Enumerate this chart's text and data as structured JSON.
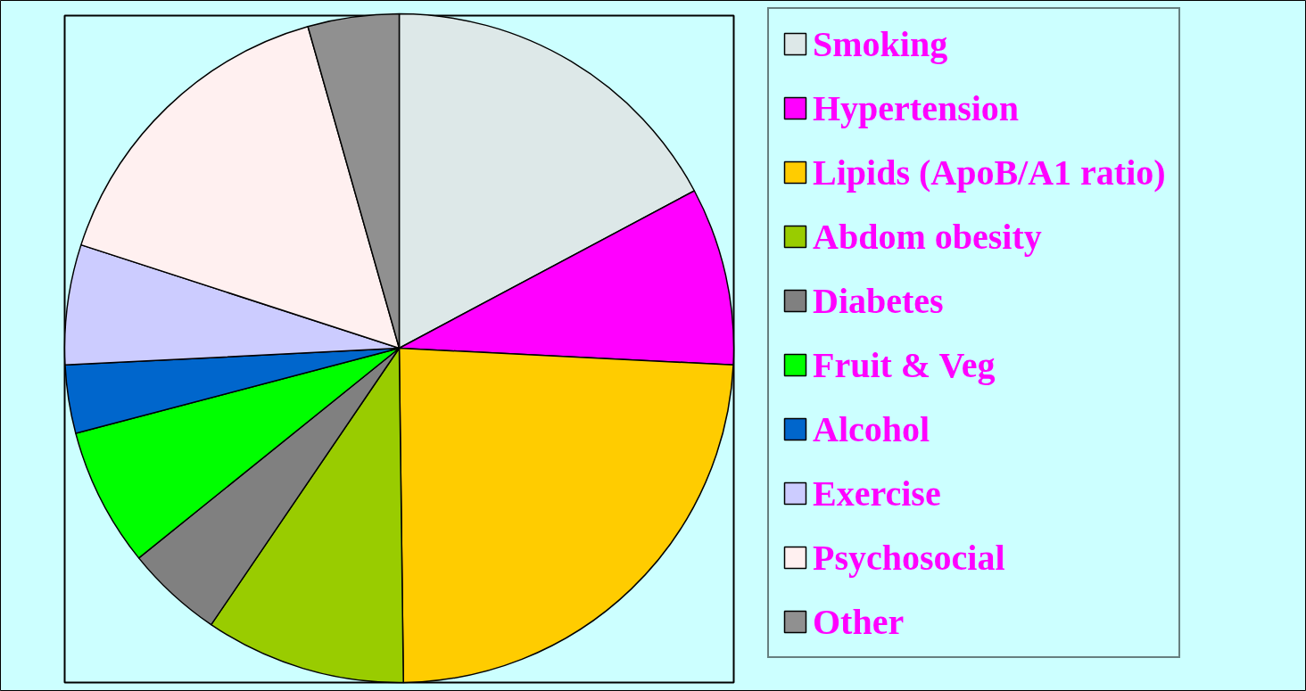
{
  "chart_data": {
    "type": "pie",
    "categories": [
      "Smoking",
      "Hypertension",
      "Lipids (ApoB/A1 ratio)",
      "Abdom obesity",
      "Diabetes",
      "Fruit & Veg",
      "Alcohol",
      "Exercise",
      "Psychosocial",
      "Other"
    ],
    "values": [
      17.2,
      8.6,
      24.0,
      9.7,
      4.7,
      6.7,
      3.3,
      5.8,
      15.6,
      4.4
    ],
    "colors": [
      "#dde8e8",
      "#ff00ff",
      "#ffcc00",
      "#99cc00",
      "#808080",
      "#00ff00",
      "#0066cc",
      "#ccccff",
      "#fff0f0",
      "#909090"
    ],
    "legend": "right"
  }
}
